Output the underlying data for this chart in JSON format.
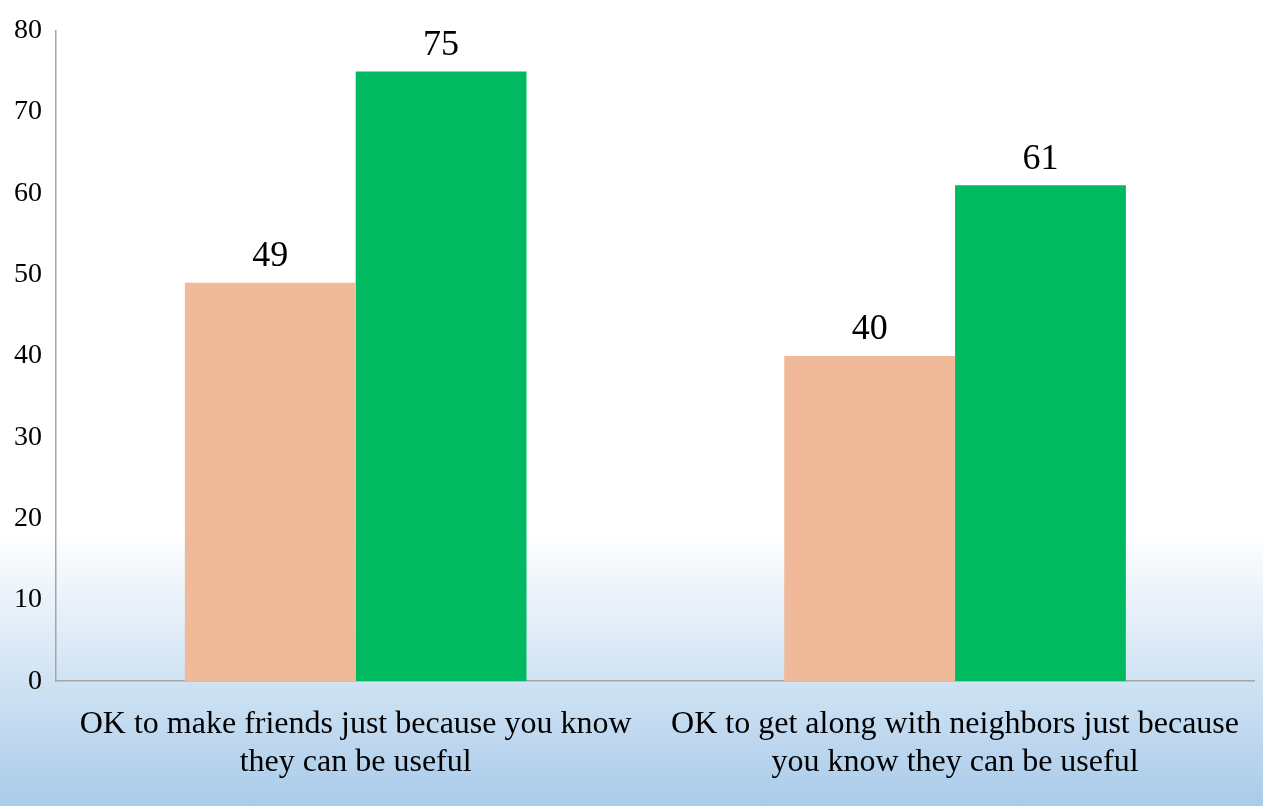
{
  "chart_data": {
    "type": "bar",
    "categories": [
      "OK to make friends just because you know they can be useful",
      "OK to get along with neighbors just because you know they can be useful"
    ],
    "series": [
      {
        "color": "#f0b999",
        "values": [
          49,
          40
        ]
      },
      {
        "color": "#00b960",
        "values": [
          75,
          61
        ]
      }
    ],
    "ylim": [
      0,
      80
    ],
    "yticks": [
      0,
      10,
      20,
      30,
      40,
      50,
      60,
      70,
      80
    ],
    "grid": false,
    "legend": false,
    "data_labels": true
  }
}
